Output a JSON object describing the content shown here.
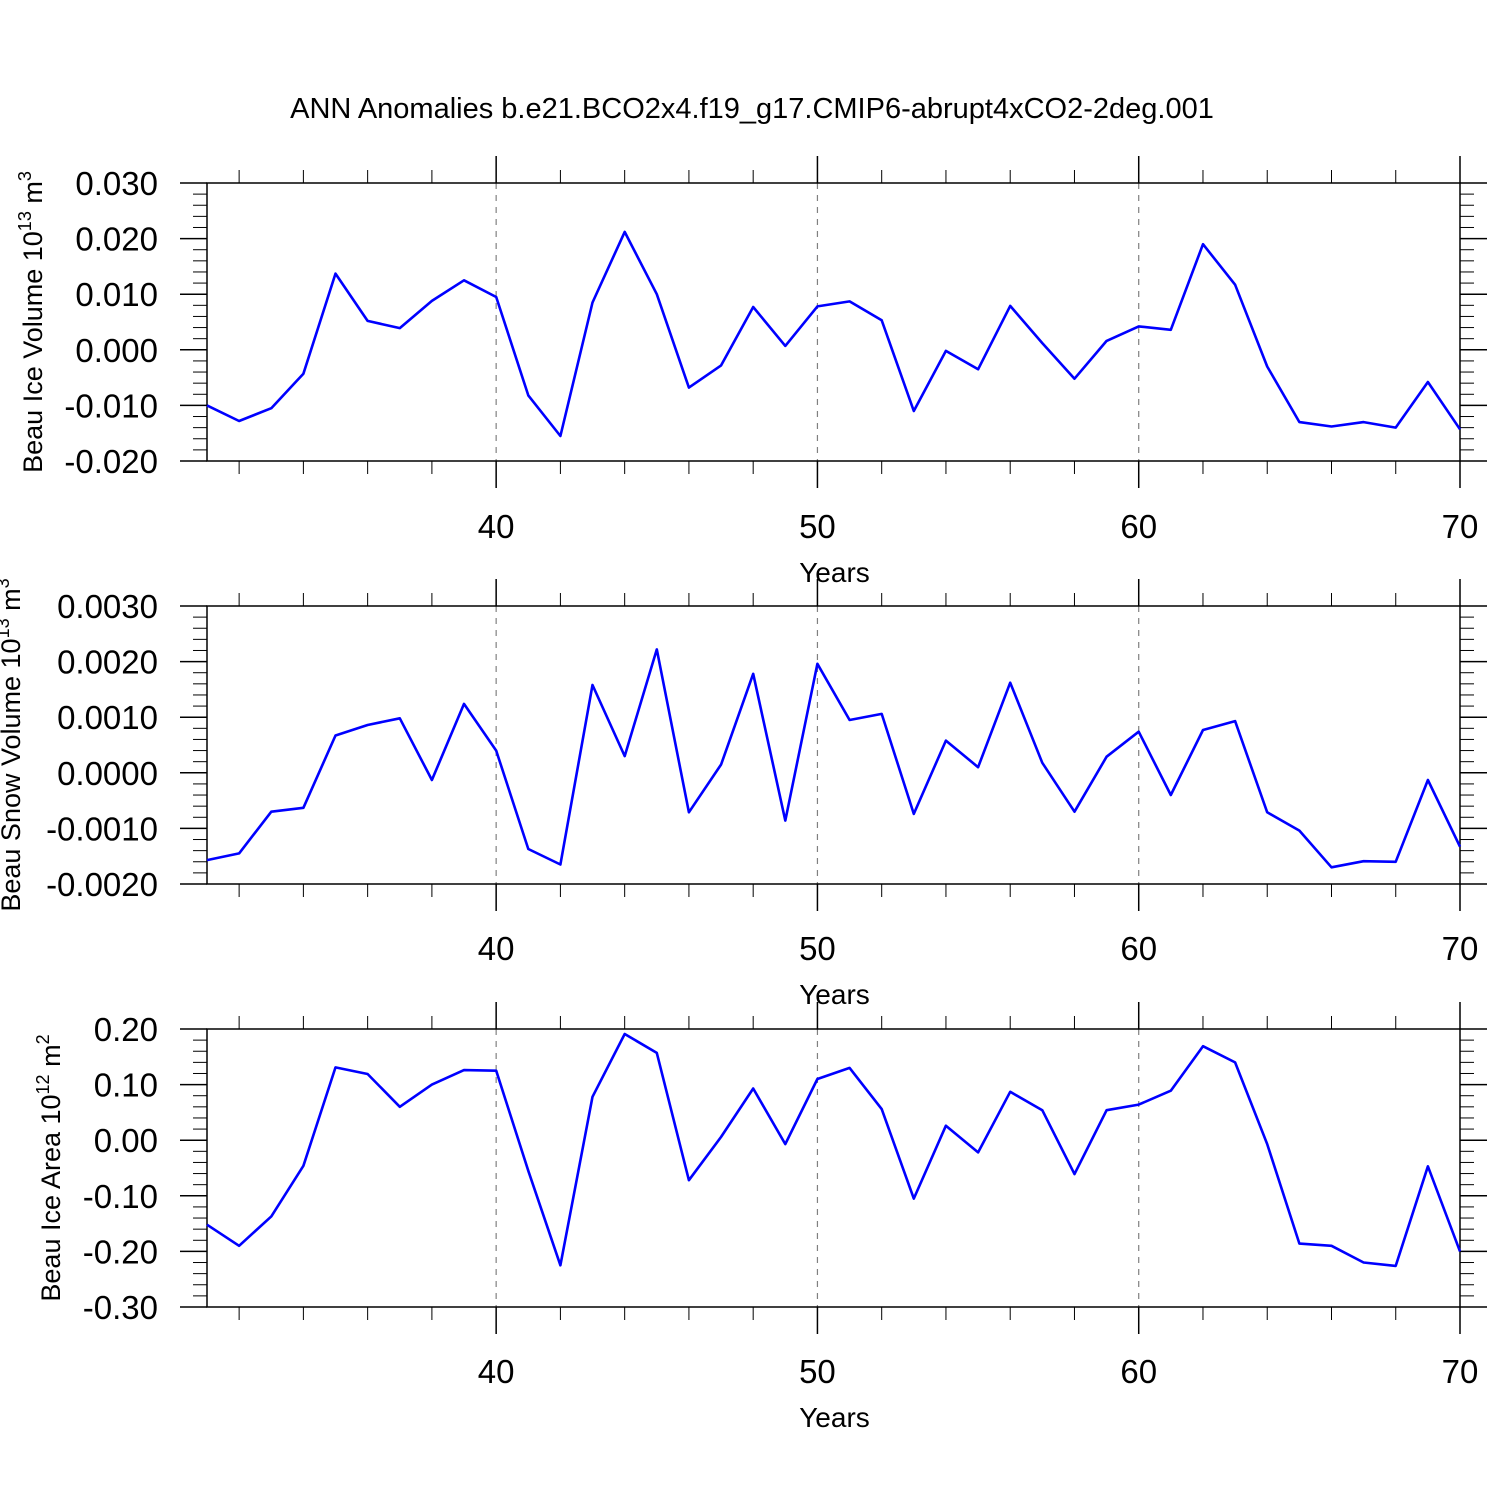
{
  "title": "ANN Anomalies b.e21.BCO2x4.f19_g17.CMIP6-abrupt4xCO2-2deg.001",
  "colors": {
    "line": "#0000ff",
    "axis": "#000000",
    "grid": "#808080"
  },
  "chart_data": [
    {
      "type": "line",
      "ylabel_main": "Beau Ice Volume 10",
      "ylabel_sup": "13",
      "ylabel_unit": " m",
      "ylabel_unit_sup": "3",
      "xlabel": "Years",
      "xlim": [
        31,
        70
      ],
      "ylim": [
        -0.02,
        0.03
      ],
      "yticks": [
        -0.02,
        -0.01,
        0.0,
        0.01,
        0.02,
        0.03
      ],
      "ytick_labels": [
        "-0.020",
        "-0.010",
        "0.000",
        "0.010",
        "0.020",
        "0.030"
      ],
      "xticks": [
        40,
        50,
        60,
        70
      ],
      "xtick_labels": [
        "40",
        "50",
        "60",
        "70"
      ],
      "grid_x": [
        40,
        50,
        60
      ],
      "x": [
        31,
        32,
        33,
        34,
        35,
        36,
        37,
        38,
        39,
        40,
        41,
        42,
        43,
        44,
        45,
        46,
        47,
        48,
        49,
        50,
        51,
        52,
        53,
        54,
        55,
        56,
        57,
        58,
        59,
        60,
        61,
        62,
        63,
        64,
        65,
        66,
        67,
        68,
        69,
        70
      ],
      "series": [
        {
          "values": [
            -0.01,
            -0.0128,
            -0.0105,
            -0.0043,
            0.0137,
            0.0052,
            0.0039,
            0.0088,
            0.0125,
            0.0095,
            -0.0082,
            -0.0155,
            0.0085,
            0.0212,
            0.01,
            -0.0068,
            -0.0028,
            0.0077,
            0.0007,
            0.0078,
            0.0087,
            0.0053,
            -0.011,
            -0.0002,
            -0.0035,
            0.0079,
            0.0012,
            -0.0052,
            0.0016,
            0.0042,
            0.0036,
            0.019,
            0.0117,
            -0.003,
            -0.013,
            -0.0138,
            -0.013,
            -0.014,
            -0.0058,
            -0.0143
          ]
        }
      ]
    },
    {
      "type": "line",
      "ylabel_main": "Beau Snow Volume 10",
      "ylabel_sup": "13",
      "ylabel_unit": " m",
      "ylabel_unit_sup": "3",
      "xlabel": "Years",
      "xlim": [
        31,
        70
      ],
      "ylim": [
        -0.002,
        0.003
      ],
      "yticks": [
        -0.002,
        -0.001,
        0.0,
        0.001,
        0.002,
        0.003
      ],
      "ytick_labels": [
        "-0.0020",
        "-0.0010",
        "0.0000",
        "0.0010",
        "0.0020",
        "0.0030"
      ],
      "xticks": [
        40,
        50,
        60,
        70
      ],
      "xtick_labels": [
        "40",
        "50",
        "60",
        "70"
      ],
      "grid_x": [
        40,
        50,
        60
      ],
      "x": [
        31,
        32,
        33,
        34,
        35,
        36,
        37,
        38,
        39,
        40,
        41,
        42,
        43,
        44,
        45,
        46,
        47,
        48,
        49,
        50,
        51,
        52,
        53,
        54,
        55,
        56,
        57,
        58,
        59,
        60,
        61,
        62,
        63,
        64,
        65,
        66,
        67,
        68,
        69,
        70
      ],
      "series": [
        {
          "values": [
            -0.00157,
            -0.00145,
            -0.0007,
            -0.00063,
            0.00067,
            0.00086,
            0.00098,
            -0.00013,
            0.00124,
            0.0004,
            -0.00137,
            -0.00165,
            0.00158,
            0.0003,
            0.00222,
            -0.00071,
            0.00015,
            0.00178,
            -0.00086,
            0.00196,
            0.00095,
            0.00106,
            -0.00074,
            0.00058,
            0.0001,
            0.00162,
            0.00018,
            -0.0007,
            0.00029,
            0.00074,
            -0.0004,
            0.00077,
            0.00093,
            -0.00071,
            -0.00104,
            -0.0017,
            -0.00159,
            -0.0016,
            -0.00013,
            -0.00133
          ]
        }
      ]
    },
    {
      "type": "line",
      "ylabel_main": "Beau Ice Area 10",
      "ylabel_sup": "12",
      "ylabel_unit": " m",
      "ylabel_unit_sup": "2",
      "xlabel": "Years",
      "xlim": [
        31,
        70
      ],
      "ylim": [
        -0.3,
        0.2
      ],
      "yticks": [
        -0.3,
        -0.2,
        -0.1,
        0.0,
        0.1,
        0.2
      ],
      "ytick_labels": [
        "-0.30",
        "-0.20",
        "-0.10",
        "0.00",
        "0.10",
        "0.20"
      ],
      "xticks": [
        40,
        50,
        60,
        70
      ],
      "xtick_labels": [
        "40",
        "50",
        "60",
        "70"
      ],
      "grid_x": [
        40,
        50,
        60
      ],
      "x": [
        31,
        32,
        33,
        34,
        35,
        36,
        37,
        38,
        39,
        40,
        41,
        42,
        43,
        44,
        45,
        46,
        47,
        48,
        49,
        50,
        51,
        52,
        53,
        54,
        55,
        56,
        57,
        58,
        59,
        60,
        61,
        62,
        63,
        64,
        65,
        66,
        67,
        68,
        69,
        70
      ],
      "series": [
        {
          "values": [
            -0.152,
            -0.19,
            -0.137,
            -0.046,
            0.131,
            0.119,
            0.06,
            0.1,
            0.126,
            0.125,
            -0.055,
            -0.225,
            0.078,
            0.191,
            0.157,
            -0.072,
            0.006,
            0.093,
            -0.007,
            0.11,
            0.13,
            0.056,
            -0.105,
            0.026,
            -0.022,
            0.087,
            0.054,
            -0.061,
            0.054,
            0.064,
            0.089,
            0.169,
            0.14,
            -0.007,
            -0.186,
            -0.19,
            -0.22,
            -0.226,
            -0.047,
            -0.2
          ]
        }
      ]
    }
  ]
}
